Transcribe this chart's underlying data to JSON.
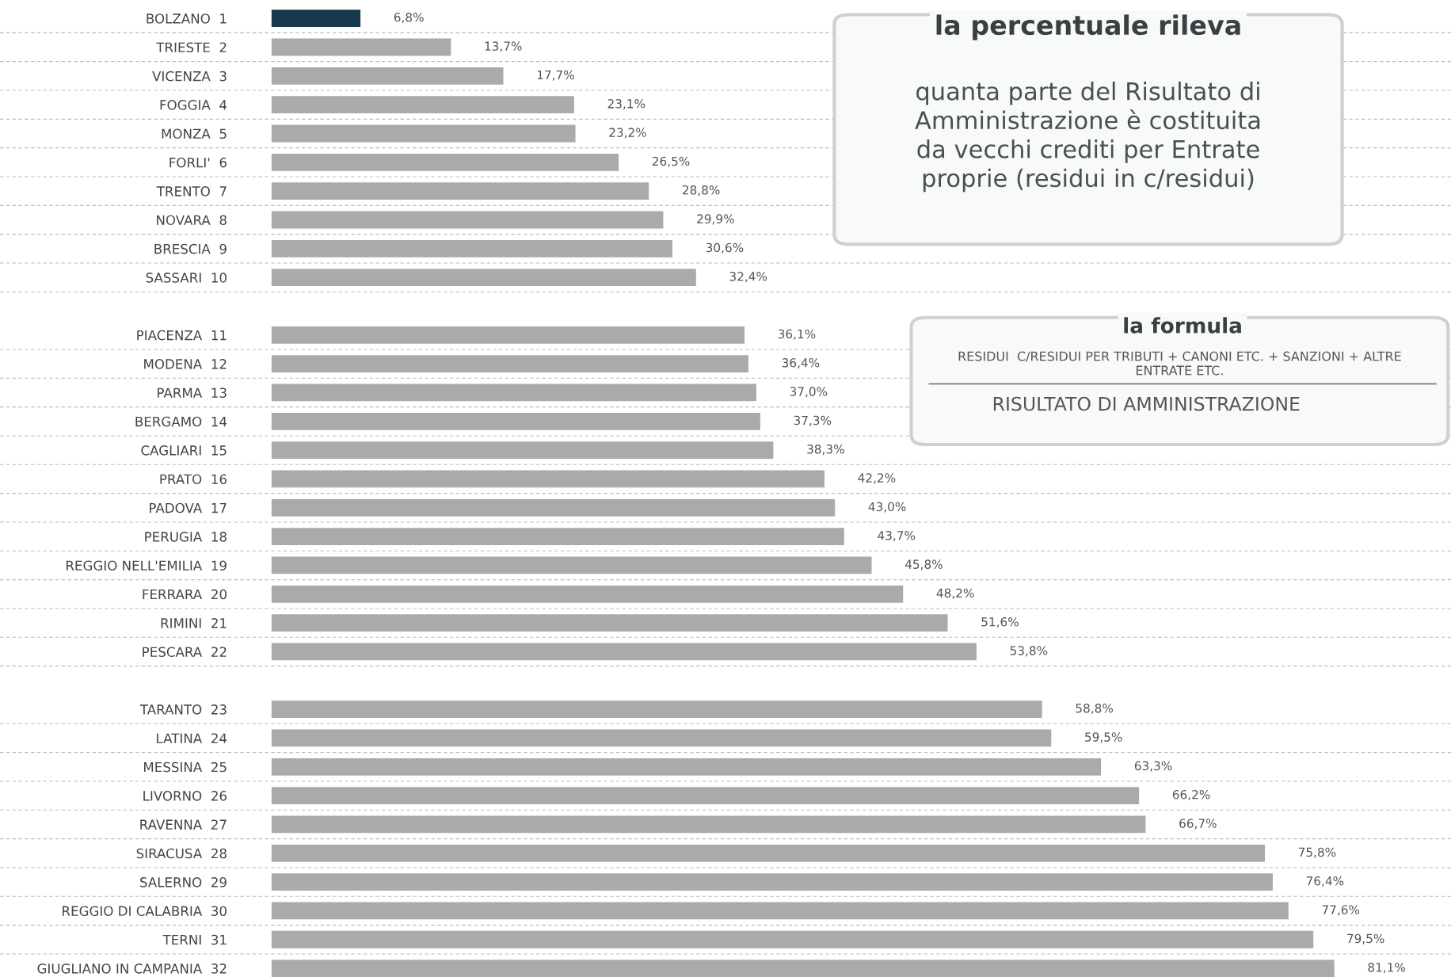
{
  "chart_data": {
    "type": "bar",
    "orientation": "horizontal",
    "categories": [
      "BOLZANO  1",
      "TRIESTE  2",
      "VICENZA  3",
      "FOGGIA  4",
      "MONZA  5",
      "FORLI'  6",
      "TRENTO  7",
      "NOVARA  8",
      "BRESCIA  9",
      "SASSARI  10",
      null,
      "PIACENZA  11",
      "MODENA  12",
      "PARMA  13",
      "BERGAMO  14",
      "CAGLIARI  15",
      "PRATO  16",
      "PADOVA  17",
      "PERUGIA  18",
      "REGGIO NELL'EMILIA  19",
      "FERRARA  20",
      "RIMINI  21",
      "PESCARA  22",
      null,
      "TARANTO  23",
      "LATINA  24",
      "MESSINA  25",
      "LIVORNO  26",
      "RAVENNA  27",
      "SIRACUSA  28",
      "SALERNO  29",
      "REGGIO DI CALABRIA  30",
      "TERNI  31",
      "GIUGLIANO IN CAMPANIA  32"
    ],
    "values": [
      6.8,
      13.7,
      17.7,
      23.1,
      23.2,
      26.5,
      28.8,
      29.9,
      30.6,
      32.4,
      null,
      36.1,
      36.4,
      37.0,
      37.3,
      38.3,
      42.2,
      43.0,
      43.7,
      45.8,
      48.2,
      51.6,
      53.8,
      null,
      58.8,
      59.5,
      63.3,
      66.2,
      66.7,
      75.8,
      76.4,
      77.6,
      79.5,
      81.1
    ],
    "value_labels": [
      "6,8%",
      "13,7%",
      "17,7%",
      "23,1%",
      "23,2%",
      "26,5%",
      "28,8%",
      "29,9%",
      "30,6%",
      "32,4%",
      null,
      "36,1%",
      "36,4%",
      "37,0%",
      "37,3%",
      "38,3%",
      "42,2%",
      "43,0%",
      "43,7%",
      "45,8%",
      "48,2%",
      "51,6%",
      "53,8%",
      null,
      "58,8%",
      "59,5%",
      "63,3%",
      "66,2%",
      "66,7%",
      "75,8%",
      "76,4%",
      "77,6%",
      "79,5%",
      "81,1%"
    ],
    "colors": [
      "#17394d",
      "#aaaaaa",
      "#aaaaaa",
      "#aaaaaa",
      "#aaaaaa",
      "#aaaaaa",
      "#aaaaaa",
      "#aaaaaa",
      "#aaaaaa",
      "#aaaaaa",
      "#aaaaaa",
      "#aaaaaa",
      "#aaaaaa",
      "#aaaaaa",
      "#aaaaaa",
      "#aaaaaa",
      "#aaaaaa",
      "#aaaaaa",
      "#aaaaaa",
      "#aaaaaa",
      "#aaaaaa",
      "#aaaaaa",
      "#aaaaaa",
      "#aaaaaa",
      "#aaaaaa",
      "#aaaaaa",
      "#aaaaaa",
      "#aaaaaa",
      "#aaaaaa",
      "#aaaaaa",
      "#aaaaaa",
      "#aaaaaa",
      "#aaaaaa",
      "#aaaaaa"
    ],
    "xlim": [
      0,
      90
    ],
    "tick_labels": "y",
    "grid": "y",
    "legend": false,
    "annotations": [
      "la percentuale rileva",
      "quanta parte del Risultato di\nAmministrazione è costituita\nda vecchi crediti per Entrate\nproprie (residui in c/residui)",
      "la formula",
      "RESIDUI  C/RESIDUI PER TRIBUTI + CANONI ETC. + SANZIONI + ALTRE\nENTRATE ETC.",
      "RISULTATO DI AMMINISTRAZIONE"
    ]
  }
}
